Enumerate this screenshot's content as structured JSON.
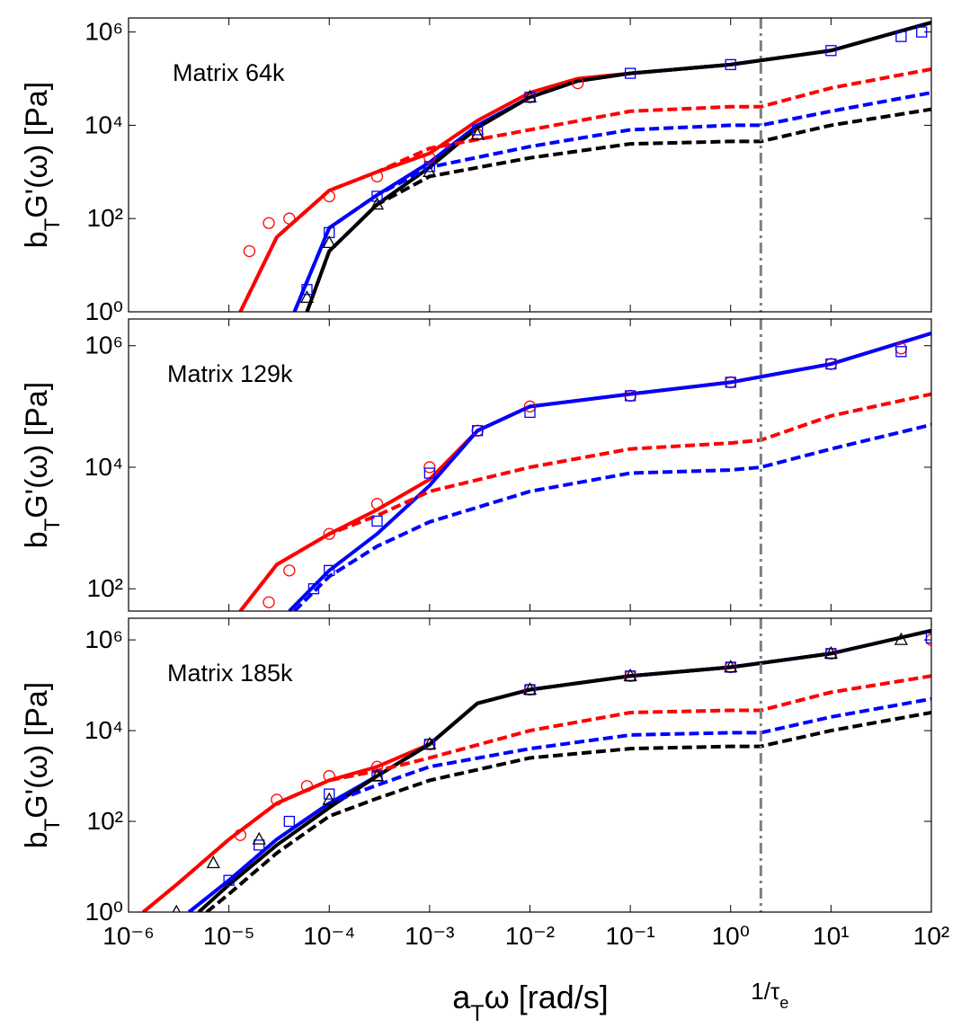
{
  "chart_data": [
    {
      "type": "line",
      "annotation": "Matrix 64k",
      "ylabel": [
        "b",
        "T",
        "G'(ω) [Pa]"
      ],
      "xlim": [
        1e-06,
        100
      ],
      "ylim": [
        1,
        2000000
      ],
      "log_x": true,
      "log_y": true,
      "vline_x": 2,
      "yticks": [
        {
          "value": 1,
          "label": "10⁰"
        },
        {
          "value": 100,
          "label": "10²"
        },
        {
          "value": 10000,
          "label": "10⁴"
        },
        {
          "value": 1000000,
          "label": "10⁶"
        }
      ],
      "series": [
        {
          "color": "#ff0000",
          "style": "solid",
          "x": [
            1.3e-05,
            3e-05,
            0.0001,
            0.0003,
            0.001,
            0.003,
            0.01,
            0.03,
            0.1,
            1,
            10,
            100
          ],
          "values": [
            1,
            40,
            400,
            1000,
            2500,
            12600,
            50000,
            100000,
            130000,
            200000,
            400000,
            1600000
          ]
        },
        {
          "color": "#0000ff",
          "style": "solid",
          "x": [
            4.5e-05,
            0.0001,
            0.0003,
            0.001,
            0.003,
            0.01,
            0.03,
            0.1,
            1,
            10,
            100
          ],
          "values": [
            1,
            63,
            320,
            1600,
            10000,
            40000,
            89000,
            130000,
            200000,
            400000,
            1600000
          ]
        },
        {
          "color": "#000000",
          "style": "solid",
          "x": [
            6e-05,
            0.0001,
            0.0003,
            0.001,
            0.003,
            0.01,
            0.03,
            0.1,
            1,
            10,
            100
          ],
          "values": [
            1,
            20,
            200,
            1260,
            8900,
            40000,
            89000,
            130000,
            200000,
            400000,
            1600000
          ]
        },
        {
          "color": "#ff0000",
          "style": "dashed",
          "x": [
            1.3e-05,
            3e-05,
            0.0001,
            0.0003,
            0.001,
            0.01,
            0.1,
            1,
            2,
            10,
            100
          ],
          "values": [
            1,
            40,
            400,
            1000,
            3200,
            8000,
            20000,
            25000,
            25000,
            63000,
            160000
          ]
        },
        {
          "color": "#0000ff",
          "style": "dashed",
          "x": [
            4.5e-05,
            0.0001,
            0.0003,
            0.001,
            0.01,
            0.1,
            1,
            2,
            10,
            100
          ],
          "values": [
            1,
            63,
            320,
            1260,
            3500,
            8000,
            10000,
            10000,
            20000,
            50000
          ]
        },
        {
          "color": "#000000",
          "style": "dashed",
          "x": [
            6e-05,
            0.0001,
            0.0003,
            0.001,
            0.01,
            0.1,
            1,
            2,
            10,
            100
          ],
          "values": [
            1,
            20,
            200,
            800,
            2000,
            4000,
            4500,
            4500,
            10000,
            22000
          ]
        },
        {
          "color": "#ff0000",
          "marker": "circle",
          "x": [
            1.6e-05,
            2.5e-05,
            4e-05,
            0.0001,
            0.0003,
            0.001,
            0.003,
            0.01,
            0.03
          ],
          "values": [
            20,
            80,
            100,
            300,
            800,
            2000,
            6300,
            40000,
            80000
          ]
        },
        {
          "color": "#0000ff",
          "marker": "square",
          "x": [
            6e-05,
            0.0001,
            0.0003,
            0.001,
            0.003,
            0.01,
            0.1,
            1,
            10,
            50,
            80
          ],
          "values": [
            3,
            50,
            300,
            1300,
            8000,
            40000,
            130000,
            200000,
            400000,
            800000,
            1000000
          ]
        },
        {
          "color": "#000000",
          "marker": "triangle",
          "x": [
            6e-05,
            0.0001,
            0.0003,
            0.001,
            0.003,
            0.01
          ],
          "values": [
            2,
            30,
            200,
            1000,
            6300,
            40000
          ]
        }
      ]
    },
    {
      "type": "line",
      "annotation": "Matrix 129k",
      "ylabel": [
        "b",
        "T",
        "G'(ω) [Pa]"
      ],
      "xlim": [
        1e-06,
        100
      ],
      "ylim": [
        43,
        2750000
      ],
      "log_x": true,
      "log_y": true,
      "vline_x": 2,
      "yticks": [
        {
          "value": 100,
          "label": "10²"
        },
        {
          "value": 10000,
          "label": "10⁴"
        },
        {
          "value": 1000000,
          "label": "10⁶"
        }
      ],
      "series": [
        {
          "color": "#ff0000",
          "style": "solid",
          "x": [
            1.3e-05,
            3e-05,
            0.0001,
            0.0003,
            0.001,
            0.003,
            0.01,
            0.1,
            1,
            10,
            100
          ],
          "values": [
            43,
            250,
            800,
            2000,
            6300,
            40000,
            100000,
            160000,
            250000,
            500000,
            1600000
          ]
        },
        {
          "color": "#0000ff",
          "style": "solid",
          "x": [
            4e-05,
            0.0001,
            0.0003,
            0.001,
            0.003,
            0.01,
            0.1,
            1,
            10,
            100
          ],
          "values": [
            43,
            200,
            800,
            5000,
            40000,
            100000,
            160000,
            250000,
            500000,
            1600000
          ]
        },
        {
          "color": "#ff0000",
          "style": "dashed",
          "x": [
            1.3e-05,
            3e-05,
            0.0001,
            0.0003,
            0.001,
            0.01,
            0.1,
            1,
            2,
            10,
            100
          ],
          "values": [
            43,
            250,
            800,
            1600,
            4000,
            10000,
            20000,
            25000,
            28000,
            70000,
            160000
          ]
        },
        {
          "color": "#0000ff",
          "style": "dashed",
          "x": [
            4.5e-05,
            0.0001,
            0.0003,
            0.001,
            0.01,
            0.1,
            1,
            2,
            10,
            100
          ],
          "values": [
            43,
            160,
            500,
            1260,
            4000,
            8000,
            9000,
            10000,
            20000,
            50000
          ]
        },
        {
          "color": "#ff0000",
          "marker": "circle",
          "x": [
            1.6e-05,
            2.5e-05,
            4e-05,
            0.0001,
            0.0003,
            0.001,
            0.003,
            0.01,
            0.1,
            1,
            10,
            50
          ],
          "values": [
            35,
            60,
            200,
            800,
            2500,
            10000,
            40000,
            100000,
            150000,
            250000,
            500000,
            900000
          ]
        },
        {
          "color": "#0000ff",
          "marker": "square",
          "x": [
            7e-05,
            0.0001,
            0.0003,
            0.001,
            0.003,
            0.01,
            0.1,
            1,
            10,
            50
          ],
          "values": [
            100,
            200,
            1300,
            8000,
            40000,
            80000,
            150000,
            250000,
            500000,
            800000
          ]
        }
      ]
    },
    {
      "type": "line",
      "annotation": "Matrix 185k",
      "ylabel": [
        "b",
        "T",
        "G'(ω) [Pa]"
      ],
      "xlabel": [
        "a",
        "T",
        "ω [rad/s]"
      ],
      "vline_label": [
        "1/τ",
        "e"
      ],
      "xlim": [
        1e-06,
        100
      ],
      "ylim": [
        1,
        3000000
      ],
      "log_x": true,
      "log_y": true,
      "vline_x": 2,
      "xticks": [
        {
          "value": 1e-06,
          "label": "10⁻⁶"
        },
        {
          "value": 1e-05,
          "label": "10⁻⁵"
        },
        {
          "value": 0.0001,
          "label": "10⁻⁴"
        },
        {
          "value": 0.001,
          "label": "10⁻³"
        },
        {
          "value": 0.01,
          "label": "10⁻²"
        },
        {
          "value": 0.1,
          "label": "10⁻¹"
        },
        {
          "value": 1,
          "label": "10⁰"
        },
        {
          "value": 10,
          "label": "10¹"
        },
        {
          "value": 100,
          "label": "10²"
        }
      ],
      "yticks": [
        {
          "value": 1,
          "label": "10⁰"
        },
        {
          "value": 100,
          "label": "10²"
        },
        {
          "value": 10000,
          "label": "10⁴"
        },
        {
          "value": 1000000,
          "label": "10⁶"
        }
      ],
      "series": [
        {
          "color": "#ff0000",
          "style": "solid",
          "x": [
            1.4e-06,
            3e-06,
            1e-05,
            3e-05,
            0.0001,
            0.0003,
            0.001,
            0.003,
            0.01,
            0.1,
            1,
            10,
            100
          ],
          "values": [
            1,
            4,
            40,
            250,
            800,
            1600,
            5000,
            40000,
            80000,
            160000,
            250000,
            500000,
            1600000
          ]
        },
        {
          "color": "#0000ff",
          "style": "solid",
          "x": [
            4e-06,
            1e-05,
            3e-05,
            0.0001,
            0.0003,
            0.001,
            0.003,
            0.01,
            0.1,
            1,
            10,
            100
          ],
          "values": [
            1,
            5,
            40,
            250,
            1000,
            5000,
            40000,
            80000,
            160000,
            250000,
            500000,
            1600000
          ]
        },
        {
          "color": "#000000",
          "style": "solid",
          "x": [
            5e-06,
            1e-05,
            3e-05,
            0.0001,
            0.0003,
            0.001,
            0.003,
            0.01,
            0.1,
            1,
            10,
            100
          ],
          "values": [
            1,
            4,
            30,
            200,
            1000,
            5000,
            40000,
            80000,
            160000,
            250000,
            500000,
            1600000
          ]
        },
        {
          "color": "#ff0000",
          "style": "dashed",
          "x": [
            1.4e-06,
            3e-06,
            1e-05,
            3e-05,
            0.0001,
            0.0003,
            0.001,
            0.01,
            0.1,
            1,
            2,
            10,
            100
          ],
          "values": [
            1,
            4,
            40,
            250,
            800,
            1300,
            2500,
            10000,
            25000,
            28000,
            28000,
            70000,
            160000
          ]
        },
        {
          "color": "#0000ff",
          "style": "dashed",
          "x": [
            4e-06,
            1e-05,
            3e-05,
            0.0001,
            0.0003,
            0.001,
            0.01,
            0.1,
            1,
            2,
            10,
            100
          ],
          "values": [
            1,
            5,
            40,
            250,
            630,
            1600,
            4000,
            8000,
            9000,
            9000,
            20000,
            50000
          ]
        },
        {
          "color": "#000000",
          "style": "dashed",
          "x": [
            6e-06,
            1e-05,
            3e-05,
            0.0001,
            0.0003,
            0.001,
            0.01,
            0.1,
            1,
            2,
            10,
            100
          ],
          "values": [
            1,
            2.5,
            20,
            130,
            320,
            800,
            2500,
            4000,
            4500,
            4500,
            10000,
            25000
          ]
        },
        {
          "color": "#ff0000",
          "marker": "circle",
          "x": [
            1.3e-05,
            3e-05,
            6e-05,
            0.0001,
            0.0003,
            0.001,
            0.01,
            0.1,
            1,
            10,
            100
          ],
          "values": [
            50,
            300,
            600,
            1000,
            1600,
            5000,
            80000,
            160000,
            250000,
            500000,
            1000000
          ]
        },
        {
          "color": "#0000ff",
          "marker": "square",
          "x": [
            1e-05,
            2e-05,
            4e-05,
            0.0001,
            0.0003,
            0.001,
            0.01,
            0.1,
            1,
            10,
            100
          ],
          "values": [
            5,
            30,
            100,
            400,
            1000,
            5000,
            80000,
            160000,
            250000,
            500000,
            1100000
          ]
        },
        {
          "color": "#000000",
          "marker": "triangle",
          "x": [
            3e-06,
            7e-06,
            2e-05,
            0.0001,
            0.0003,
            0.001,
            0.01,
            0.1,
            1,
            10,
            50
          ],
          "values": [
            1,
            12,
            40,
            300,
            1000,
            5000,
            80000,
            160000,
            250000,
            500000,
            1000000
          ]
        }
      ]
    }
  ]
}
